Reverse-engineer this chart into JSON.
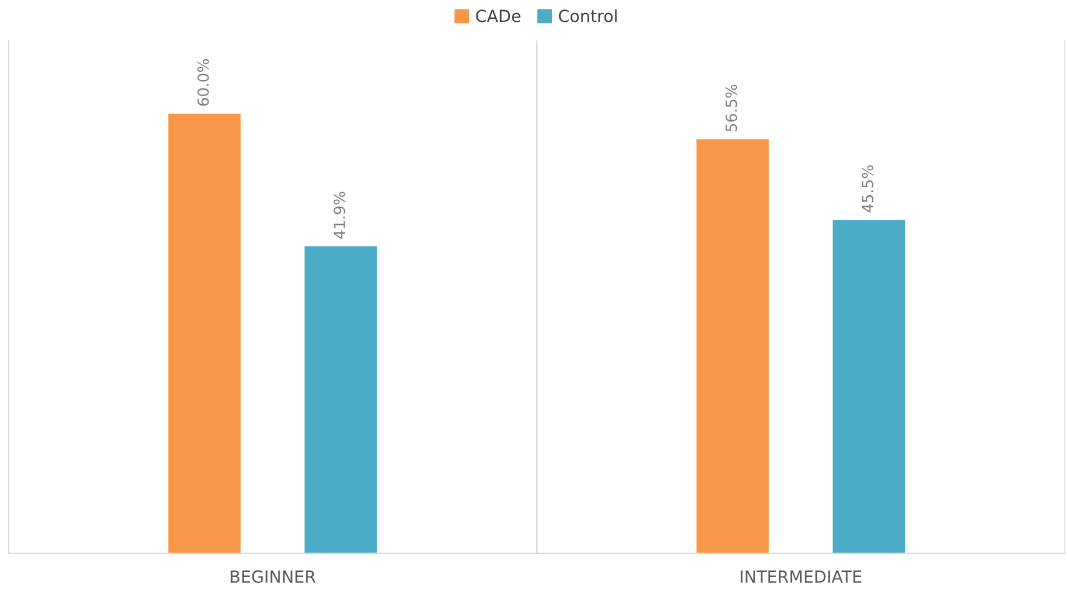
{
  "chart_data": {
    "type": "bar",
    "categories": [
      "BEGINNER",
      "INTERMEDIATE"
    ],
    "series": [
      {
        "name": "CADe",
        "color": "#f79646",
        "values": [
          60.0,
          56.5
        ],
        "value_labels": [
          "60.0%",
          "56.5%"
        ]
      },
      {
        "name": "Control",
        "color": "#4bacc6",
        "values": [
          41.9,
          45.5
        ],
        "value_labels": [
          "41.9%",
          "45.5%"
        ]
      }
    ],
    "ylim": [
      0,
      70
    ],
    "tick_labels": "x",
    "grid": "x",
    "legend": "top"
  }
}
